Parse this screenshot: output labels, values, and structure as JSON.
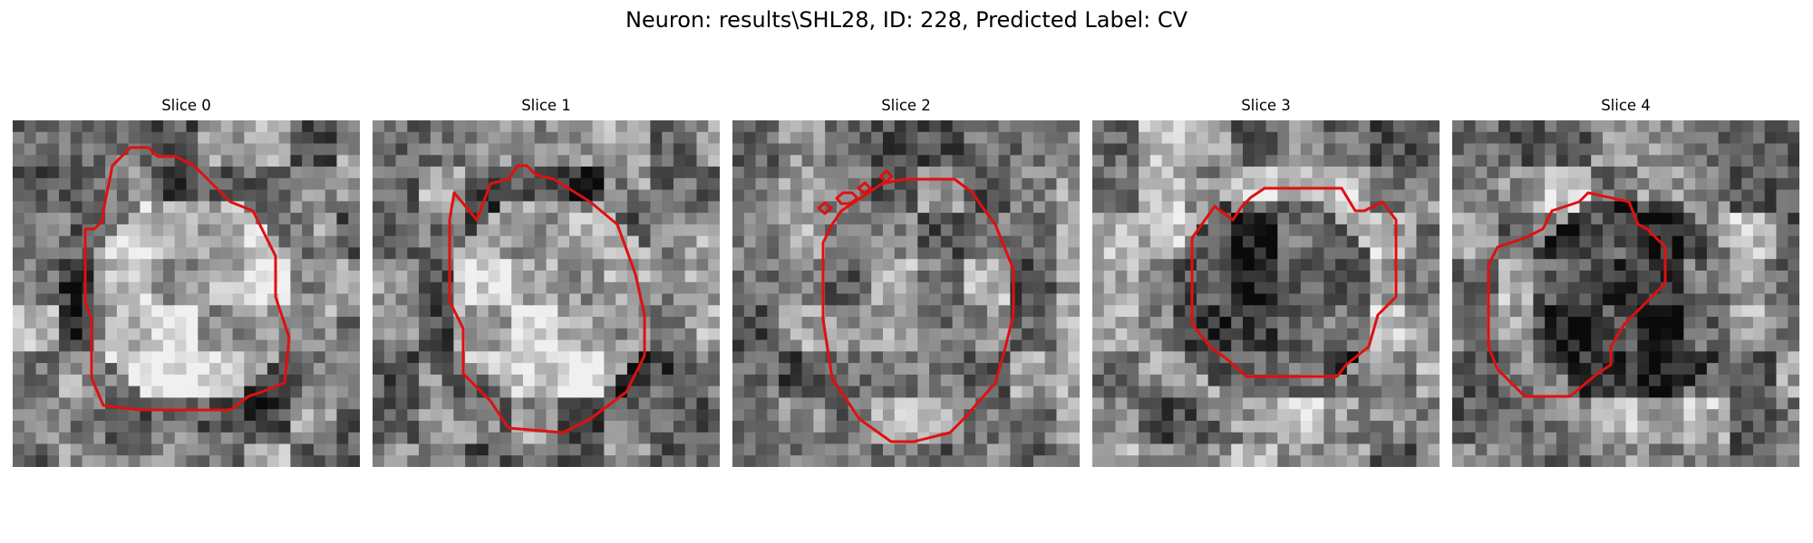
{
  "figure": {
    "title": "Neuron: results\\SHL28, ID: 228, Predicted Label: CV",
    "contour_color": "#e01010"
  },
  "panels": [
    {
      "title": "Slice 0",
      "seed": 11,
      "center_tone": "bright"
    },
    {
      "title": "Slice 1",
      "seed": 23,
      "center_tone": "bright"
    },
    {
      "title": "Slice 2",
      "seed": 37,
      "center_tone": "mid"
    },
    {
      "title": "Slice 3",
      "seed": 41,
      "center_tone": "dark"
    },
    {
      "title": "Slice 4",
      "seed": 53,
      "center_tone": "dark"
    }
  ]
}
